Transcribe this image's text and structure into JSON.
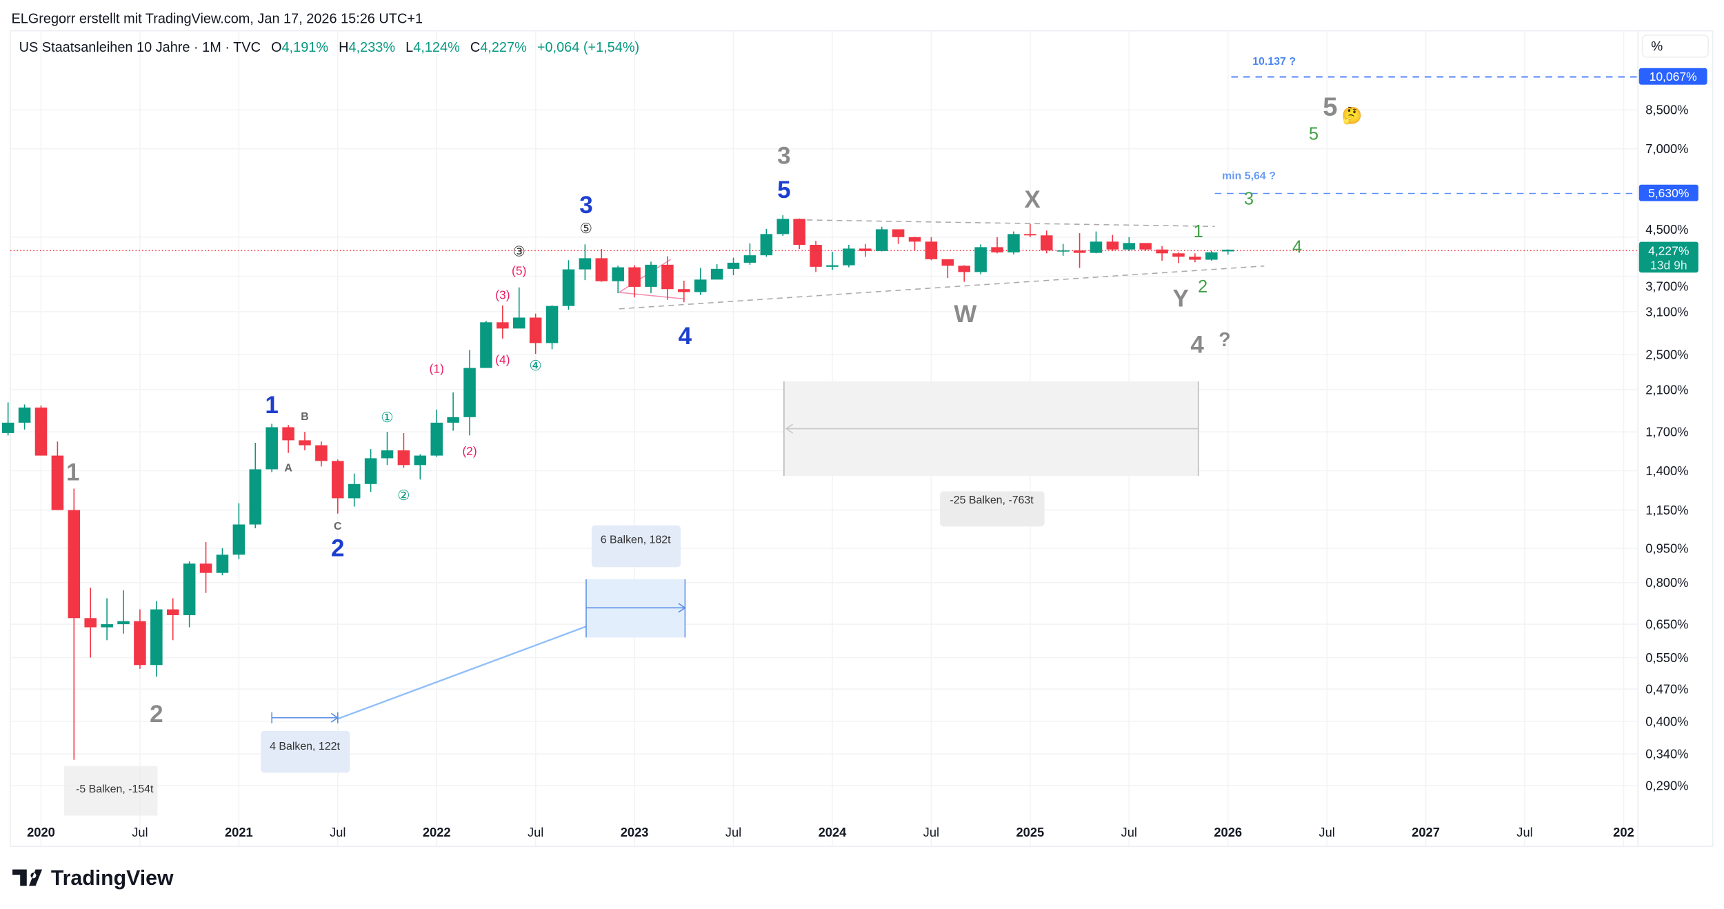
{
  "credit": "ELGregorr erstellt mit TradingView.com, Jan 17, 2026 15:26 UTC+1",
  "legend": {
    "symbol": "US Staatsanleihen 10 Jahre · 1M · TVC",
    "o_label": "O",
    "o": "4,191%",
    "h_label": "H",
    "h": "4,233%",
    "l_label": "L",
    "l": "4,124%",
    "c_label": "C",
    "c": "4,227%",
    "change": "+0,064 (+1,54%)"
  },
  "axis": {
    "unit_button": "%",
    "price_labels": [
      "8,500%",
      "7,000%",
      "4,500%",
      "3,700%",
      "3,100%",
      "2,500%",
      "2,100%",
      "1,700%",
      "1,400%",
      "1,150%",
      "0,950%",
      "0,800%",
      "0,650%",
      "0,550%",
      "0,470%",
      "0,400%",
      "0,340%",
      "0,290%"
    ],
    "price_values": [
      8.5,
      7.0,
      4.5,
      3.7,
      3.1,
      2.5,
      2.1,
      1.7,
      1.4,
      1.15,
      0.95,
      0.8,
      0.65,
      0.55,
      0.47,
      0.4,
      0.34,
      0.29
    ],
    "time_labels": [
      "2020",
      "Jul",
      "2021",
      "Jul",
      "2022",
      "Jul",
      "2023",
      "Jul",
      "2024",
      "Jul",
      "2025",
      "Jul",
      "2026",
      "Jul",
      "2027",
      "Jul",
      "202"
    ],
    "badges": {
      "target_high": "10,067%",
      "target_min": "5,630%",
      "last_price": "4,227%",
      "countdown": "13d 9h"
    }
  },
  "colors": {
    "up": "#089981",
    "down": "#f23645",
    "blue_label": "#2962ff",
    "wave_blue": "#1d3fcf",
    "wave_gray": "#8a8a8a",
    "wave_green": "#43a047",
    "pink": "#e91e63"
  },
  "annotations": [
    "1",
    "2",
    "1",
    "2",
    "B",
    "A",
    "C",
    "①",
    "②",
    "(1)",
    "(2)",
    "(3)",
    "(4)",
    "(5)",
    "③",
    "④",
    "⑤",
    "3",
    "4",
    "3",
    "5",
    "X",
    "W",
    "Y",
    "1",
    "2",
    "3",
    "4",
    "5",
    "4",
    "?",
    "5",
    "🤔",
    "10.137 ?",
    "min 5,64 ?"
  ],
  "measures": {
    "m1": "-5 Balken, -154t",
    "m2": "4 Balken, 122t",
    "m3": "6 Balken, 182t",
    "m4": "-25 Balken, -763t"
  },
  "brand": "TradingView",
  "chart_data": {
    "type": "candlestick",
    "title": "US Staatsanleihen 10 Jahre · 1M · TVC",
    "scale": "log",
    "ylabel": "%",
    "start": "2019-11",
    "interval": "1M",
    "ohlc": [
      [
        1.69,
        1.97,
        1.67,
        1.78
      ],
      [
        1.78,
        1.95,
        1.72,
        1.92
      ],
      [
        1.92,
        1.94,
        1.51,
        1.51
      ],
      [
        1.51,
        1.62,
        1.15,
        1.15
      ],
      [
        1.15,
        1.28,
        0.33,
        0.67
      ],
      [
        0.67,
        0.78,
        0.55,
        0.64
      ],
      [
        0.64,
        0.74,
        0.6,
        0.65
      ],
      [
        0.65,
        0.77,
        0.62,
        0.66
      ],
      [
        0.66,
        0.7,
        0.52,
        0.53
      ],
      [
        0.53,
        0.73,
        0.5,
        0.7
      ],
      [
        0.7,
        0.74,
        0.6,
        0.68
      ],
      [
        0.68,
        0.89,
        0.64,
        0.88
      ],
      [
        0.88,
        0.98,
        0.76,
        0.84
      ],
      [
        0.84,
        0.95,
        0.83,
        0.92
      ],
      [
        0.92,
        1.19,
        0.9,
        1.07
      ],
      [
        1.07,
        1.61,
        1.05,
        1.41
      ],
      [
        1.41,
        1.77,
        1.39,
        1.74
      ],
      [
        1.74,
        1.76,
        1.53,
        1.63
      ],
      [
        1.63,
        1.7,
        1.55,
        1.59
      ],
      [
        1.59,
        1.62,
        1.43,
        1.47
      ],
      [
        1.47,
        1.48,
        1.13,
        1.22
      ],
      [
        1.22,
        1.38,
        1.17,
        1.31
      ],
      [
        1.31,
        1.56,
        1.26,
        1.49
      ],
      [
        1.49,
        1.7,
        1.44,
        1.55
      ],
      [
        1.55,
        1.69,
        1.42,
        1.44
      ],
      [
        1.44,
        1.52,
        1.34,
        1.51
      ],
      [
        1.51,
        1.9,
        1.5,
        1.78
      ],
      [
        1.78,
        2.07,
        1.71,
        1.83
      ],
      [
        1.83,
        2.56,
        1.67,
        2.34
      ],
      [
        2.34,
        2.96,
        2.34,
        2.94
      ],
      [
        2.94,
        3.2,
        2.71,
        2.85
      ],
      [
        2.85,
        3.5,
        2.86,
        3.01
      ],
      [
        3.01,
        3.07,
        2.51,
        2.65
      ],
      [
        2.65,
        3.2,
        2.57,
        3.19
      ],
      [
        3.19,
        4.01,
        3.13,
        3.83
      ],
      [
        3.83,
        4.34,
        3.63,
        4.05
      ],
      [
        4.05,
        4.24,
        3.6,
        3.61
      ],
      [
        3.61,
        3.9,
        3.4,
        3.87
      ],
      [
        3.87,
        3.91,
        3.33,
        3.51
      ],
      [
        3.51,
        3.98,
        3.4,
        3.92
      ],
      [
        3.92,
        4.09,
        3.29,
        3.47
      ],
      [
        3.47,
        3.62,
        3.25,
        3.42
      ],
      [
        3.42,
        3.86,
        3.37,
        3.64
      ],
      [
        3.64,
        3.93,
        3.64,
        3.84
      ],
      [
        3.84,
        4.06,
        3.72,
        3.96
      ],
      [
        3.96,
        4.36,
        3.92,
        4.11
      ],
      [
        4.11,
        4.69,
        4.08,
        4.57
      ],
      [
        4.57,
        5.02,
        4.53,
        4.93
      ],
      [
        4.93,
        4.94,
        4.24,
        4.33
      ],
      [
        4.33,
        4.42,
        3.78,
        3.88
      ],
      [
        3.88,
        4.18,
        3.82,
        3.91
      ],
      [
        3.91,
        4.33,
        3.87,
        4.25
      ],
      [
        4.25,
        4.35,
        4.08,
        4.2
      ],
      [
        4.2,
        4.74,
        4.19,
        4.68
      ],
      [
        4.68,
        4.64,
        4.35,
        4.5
      ],
      [
        4.5,
        4.51,
        4.21,
        4.4
      ],
      [
        4.4,
        4.5,
        4.01,
        4.03
      ],
      [
        4.03,
        4.01,
        3.67,
        3.9
      ],
      [
        3.9,
        3.91,
        3.6,
        3.78
      ],
      [
        3.78,
        4.34,
        3.74,
        4.28
      ],
      [
        4.28,
        4.5,
        4.15,
        4.17
      ],
      [
        4.17,
        4.63,
        4.13,
        4.57
      ],
      [
        4.57,
        4.81,
        4.5,
        4.54
      ],
      [
        4.54,
        4.65,
        4.15,
        4.21
      ],
      [
        4.21,
        4.35,
        4.1,
        4.21
      ],
      [
        4.21,
        4.59,
        3.86,
        4.16
      ],
      [
        4.16,
        4.63,
        4.15,
        4.4
      ],
      [
        4.4,
        4.55,
        4.2,
        4.23
      ],
      [
        4.23,
        4.5,
        4.2,
        4.37
      ],
      [
        4.37,
        4.36,
        4.2,
        4.23
      ],
      [
        4.23,
        4.3,
        4.0,
        4.15
      ],
      [
        4.15,
        4.17,
        3.95,
        4.08
      ],
      [
        4.08,
        4.15,
        3.97,
        4.02
      ],
      [
        4.02,
        4.2,
        4.0,
        4.17
      ],
      [
        4.191,
        4.233,
        4.124,
        4.227
      ]
    ]
  }
}
